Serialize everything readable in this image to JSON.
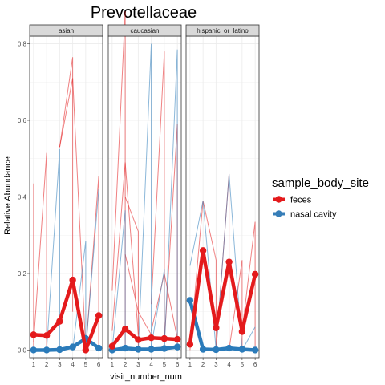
{
  "chart_data": {
    "type": "line",
    "title": "Prevotellaceae",
    "xlabel": "visit_number_num",
    "ylabel": "Relative Abundance",
    "x_ticks": [
      1,
      2,
      3,
      4,
      5,
      6
    ],
    "y_ticks": [
      0.0,
      0.2,
      0.4,
      0.6,
      0.8
    ],
    "y_tick_labels": [
      "0.0",
      "0.2",
      "0.4",
      "0.6",
      "0.8"
    ],
    "ylim": [
      -0.02,
      0.82
    ],
    "xlim": [
      0.7,
      6.3
    ],
    "grid": true,
    "legend": {
      "title": "sample_body_site",
      "placement": "right",
      "entries": [
        {
          "label": "feces",
          "color": "#E41A1C"
        },
        {
          "label": "nasal cavity",
          "color": "#377EB8"
        }
      ]
    },
    "colors": {
      "feces": "#E41A1C",
      "nasal": "#2B7BBA"
    },
    "panels": [
      {
        "label": "asian",
        "series": [
          {
            "name": "feces",
            "x": [
              1,
              2,
              3,
              4,
              5,
              6
            ],
            "y": [
              0.04,
              0.038,
              0.075,
              0.183,
              0.0,
              0.09
            ]
          },
          {
            "name": "nasal cavity",
            "x": [
              1,
              2,
              3,
              4,
              5,
              6
            ],
            "y": [
              0.0,
              0.0,
              0.001,
              0.008,
              0.03,
              0.005
            ]
          }
        ],
        "individual_lines": [
          {
            "site": "feces",
            "x": [
              1,
              1,
              1
            ],
            "y": [
              0.0,
              0.435,
              0.02
            ]
          },
          {
            "site": "feces",
            "x": [
              1,
              2,
              2,
              2
            ],
            "y": [
              0.02,
              0.515,
              0.0,
              0.03
            ]
          },
          {
            "site": "feces",
            "x": [
              3,
              4,
              4
            ],
            "y": [
              0.53,
              0.765,
              0.1
            ]
          },
          {
            "site": "feces",
            "x": [
              3,
              4,
              5
            ],
            "y": [
              0.53,
              0.71,
              0.0
            ]
          },
          {
            "site": "feces",
            "x": [
              5,
              6,
              6
            ],
            "y": [
              0.0,
              0.455,
              0.0
            ]
          },
          {
            "site": "nasal cavity",
            "x": [
              2,
              3,
              3
            ],
            "y": [
              0.0,
              0.525,
              0.0
            ]
          },
          {
            "site": "nasal cavity",
            "x": [
              4,
              5,
              5
            ],
            "y": [
              0.0,
              0.285,
              0.0
            ]
          },
          {
            "site": "nasal cavity",
            "x": [
              5,
              6
            ],
            "y": [
              0.0,
              0.42
            ]
          }
        ]
      },
      {
        "label": "caucasian",
        "series": [
          {
            "name": "feces",
            "x": [
              1,
              2,
              3,
              4,
              5,
              6
            ],
            "y": [
              0.01,
              0.055,
              0.027,
              0.032,
              0.03,
              0.028
            ]
          },
          {
            "name": "nasal cavity",
            "x": [
              1,
              2,
              3,
              4,
              5,
              6
            ],
            "y": [
              0.0,
              0.005,
              0.002,
              0.002,
              0.004,
              0.008
            ]
          }
        ],
        "individual_lines": [
          {
            "site": "feces",
            "x": [
              1,
              2,
              2
            ],
            "y": [
              0.155,
              0.885,
              0.0
            ]
          },
          {
            "site": "feces",
            "x": [
              1,
              2,
              3
            ],
            "y": [
              0.05,
              0.49,
              0.04
            ]
          },
          {
            "site": "feces",
            "x": [
              2,
              3,
              4
            ],
            "y": [
              0.25,
              0.1,
              0.04
            ]
          },
          {
            "site": "feces",
            "x": [
              2,
              3,
              3
            ],
            "y": [
              0.4,
              0.31,
              0.0
            ]
          },
          {
            "site": "feces",
            "x": [
              4,
              5,
              5
            ],
            "y": [
              0.12,
              0.78,
              0.0
            ]
          },
          {
            "site": "feces",
            "x": [
              5,
              6,
              6
            ],
            "y": [
              0.02,
              0.59,
              0.0
            ]
          },
          {
            "site": "feces",
            "x": [
              4,
              5,
              6
            ],
            "y": [
              0.05,
              0.2,
              0.03
            ]
          },
          {
            "site": "nasal cavity",
            "x": [
              1,
              2,
              2
            ],
            "y": [
              0.0,
              0.365,
              0.0
            ]
          },
          {
            "site": "nasal cavity",
            "x": [
              3,
              4,
              4
            ],
            "y": [
              0.0,
              0.8,
              0.0
            ]
          },
          {
            "site": "nasal cavity",
            "x": [
              4,
              5,
              5
            ],
            "y": [
              0.01,
              0.21,
              0.0
            ]
          },
          {
            "site": "nasal cavity",
            "x": [
              5,
              6,
              6
            ],
            "y": [
              0.0,
              0.785,
              0.0
            ]
          }
        ]
      },
      {
        "label": "hispanic_or_latino",
        "series": [
          {
            "name": "feces",
            "x": [
              1,
              2,
              3,
              4,
              5,
              6
            ],
            "y": [
              0.015,
              0.26,
              0.058,
              0.23,
              0.048,
              0.198
            ]
          },
          {
            "name": "nasal cavity",
            "x": [
              1,
              2,
              3,
              4,
              5,
              6
            ],
            "y": [
              0.13,
              0.002,
              0.001,
              0.005,
              0.002,
              0.0
            ]
          }
        ],
        "individual_lines": [
          {
            "site": "feces",
            "x": [
              1,
              2,
              3,
              3
            ],
            "y": [
              0.0,
              0.39,
              0.235,
              0.0
            ]
          },
          {
            "site": "feces",
            "x": [
              3,
              4,
              4
            ],
            "y": [
              0.0,
              0.46,
              0.0
            ]
          },
          {
            "site": "feces",
            "x": [
              4,
              5,
              5
            ],
            "y": [
              0.0,
              0.235,
              0.0
            ]
          },
          {
            "site": "feces",
            "x": [
              5,
              6,
              6
            ],
            "y": [
              0.05,
              0.335,
              0.0
            ]
          },
          {
            "site": "nasal cavity",
            "x": [
              1,
              2,
              3
            ],
            "y": [
              0.22,
              0.39,
              0.0
            ]
          },
          {
            "site": "nasal cavity",
            "x": [
              3,
              4,
              5
            ],
            "y": [
              0.0,
              0.46,
              0.0
            ]
          },
          {
            "site": "nasal cavity",
            "x": [
              5,
              6
            ],
            "y": [
              0.0,
              0.06
            ]
          }
        ]
      }
    ]
  }
}
